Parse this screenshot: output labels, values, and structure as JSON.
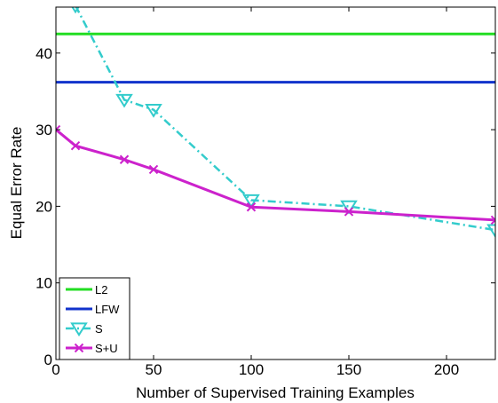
{
  "chart_data": {
    "type": "line",
    "xlabel": "Number of Supervised Training Examples",
    "ylabel": "Equal Error Rate",
    "xlim": [
      0,
      225
    ],
    "ylim": [
      0,
      46
    ],
    "xticks": [
      0,
      50,
      100,
      150,
      200
    ],
    "yticks": [
      0,
      10,
      20,
      30,
      40
    ],
    "grid": false,
    "legend_position": "bottom-left",
    "series": [
      {
        "name": "L2",
        "style": "hline",
        "color": "#22dd22",
        "x": [
          0,
          225
        ],
        "values": [
          42.5,
          42.5
        ]
      },
      {
        "name": "LFW",
        "style": "hline",
        "color": "#1133cc",
        "x": [
          0,
          225
        ],
        "values": [
          36.2,
          36.2
        ]
      },
      {
        "name": "S",
        "style": "dashdot-triangle",
        "color": "#33cccc",
        "x": [
          10,
          35,
          50,
          100,
          150,
          225
        ],
        "values": [
          46.2,
          33.9,
          32.6,
          20.8,
          20.0,
          16.9
        ]
      },
      {
        "name": "S+U",
        "style": "solid-x",
        "color": "#cc22cc",
        "x": [
          0,
          10,
          35,
          50,
          100,
          150,
          225
        ],
        "values": [
          30.0,
          27.9,
          26.1,
          24.8,
          19.9,
          19.3,
          18.2
        ]
      }
    ]
  }
}
